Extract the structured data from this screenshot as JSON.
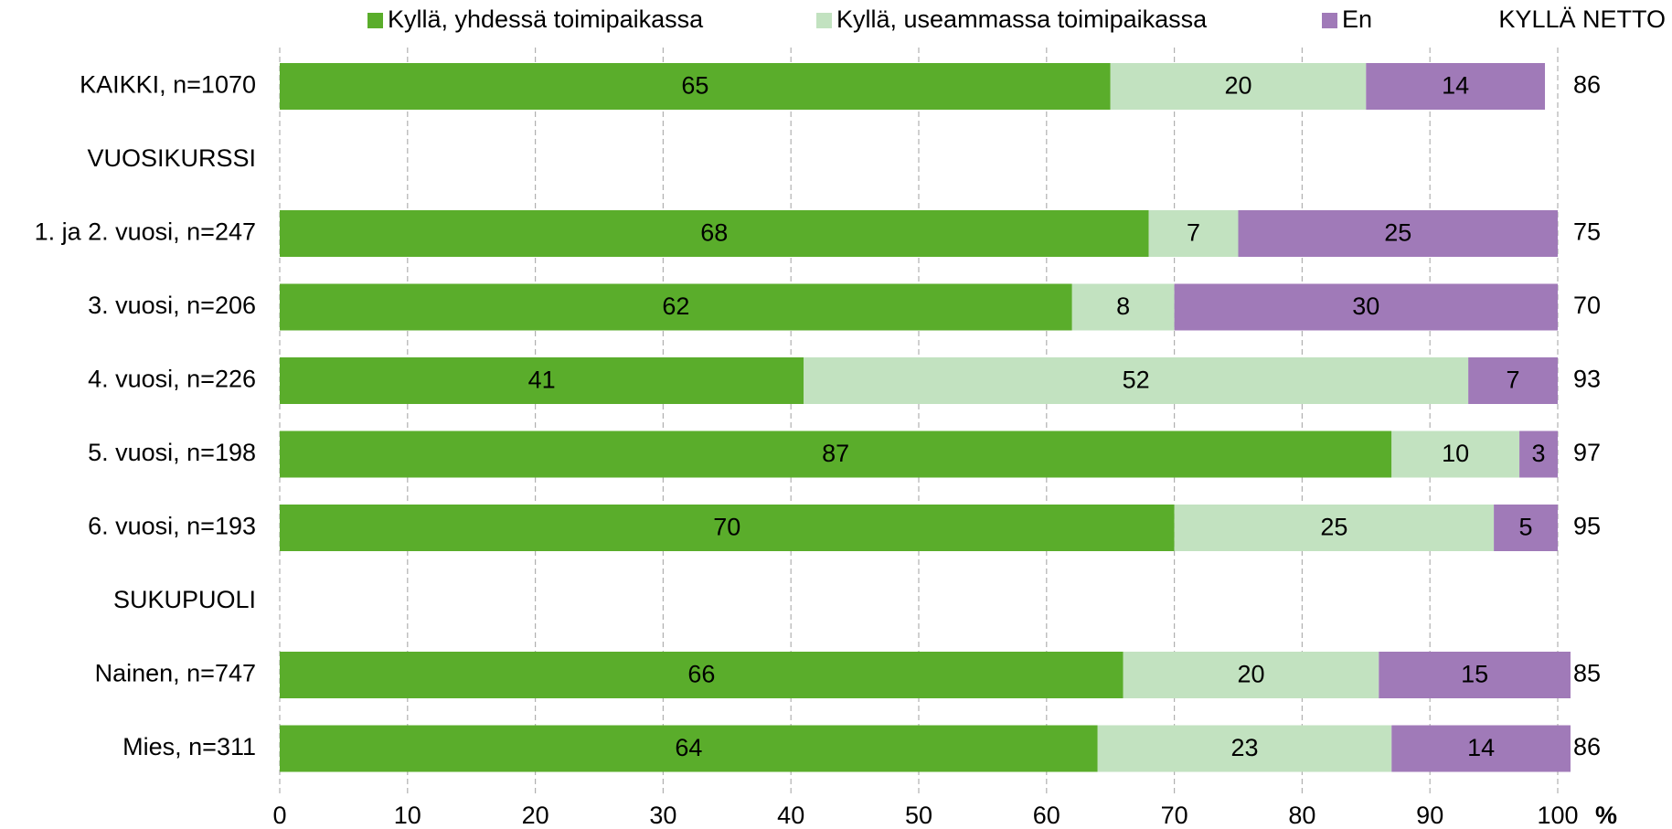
{
  "chart_data": {
    "type": "stacked-barh",
    "categories": [
      "KAIKKI, n=1070",
      "VUOSIKURSSI",
      "1. ja 2. vuosi, n=247",
      "3. vuosi, n=206",
      "4. vuosi, n=226",
      "5. vuosi, n=198",
      "6. vuosi, n=193",
      "SUKUPUOLI",
      "Nainen, n=747",
      "Mies, n=311"
    ],
    "series": [
      {
        "name": "Kyllä, yhdessä toimipaikassa",
        "color": "#5aad2b",
        "values": [
          65,
          null,
          68,
          62,
          41,
          87,
          70,
          null,
          66,
          64
        ]
      },
      {
        "name": "Kyllä, useammassa toimipaikassa",
        "color": "#c2e2c0",
        "values": [
          20,
          null,
          7,
          8,
          52,
          10,
          25,
          null,
          20,
          23
        ]
      },
      {
        "name": "En",
        "color": "#a07ab8",
        "values": [
          14,
          null,
          25,
          30,
          7,
          3,
          5,
          null,
          15,
          14
        ]
      }
    ],
    "net_title": "KYLLÄ NETTO",
    "net_values": [
      86,
      null,
      75,
      70,
      93,
      97,
      95,
      null,
      85,
      86
    ],
    "xlabel": "%",
    "xlim": [
      0,
      100
    ],
    "xticks": [
      0,
      10,
      20,
      30,
      40,
      50,
      60,
      70,
      80,
      90,
      100
    ],
    "grid": true,
    "legend": "top"
  }
}
